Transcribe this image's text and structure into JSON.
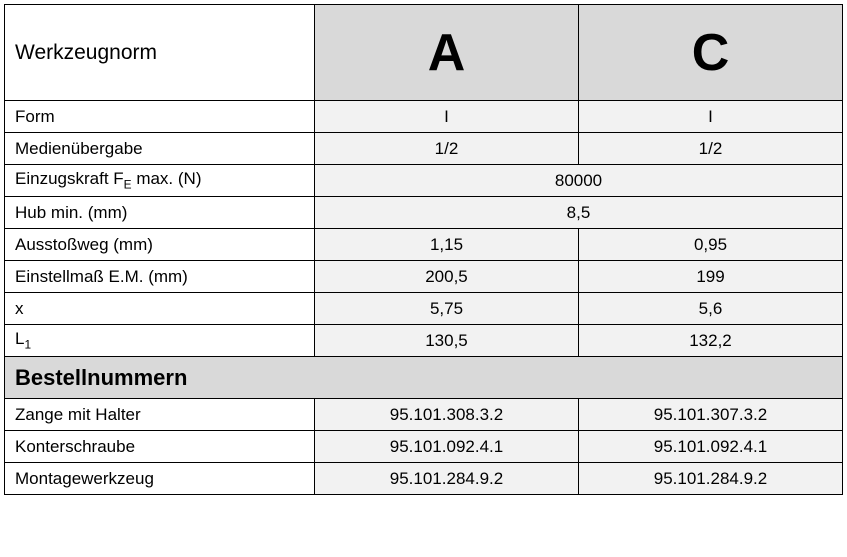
{
  "table": {
    "border_color": "#000000",
    "header_bg": "#d9d9d9",
    "value_bg": "#f2f2f2",
    "label_bg": "#ffffff",
    "font_family": "Arial",
    "header_label": "Werkzeugnorm",
    "header_label_fontsize": 21,
    "columns": [
      "A",
      "C"
    ],
    "column_header_fontsize": 52,
    "column_header_weight": 700,
    "rows": [
      {
        "label_html": "Form",
        "type": "split",
        "values": [
          "I",
          "I"
        ]
      },
      {
        "label_html": "Medienübergabe",
        "type": "split",
        "values": [
          "1/2",
          "1/2"
        ]
      },
      {
        "label_html": "Einzugskraft F<sub>E</sub> max. (N)",
        "type": "merged",
        "value": "80000"
      },
      {
        "label_html": "Hub min. (mm)",
        "type": "merged",
        "value": "8,5"
      },
      {
        "label_html": "Ausstoßweg (mm)",
        "type": "split",
        "values": [
          "1,15",
          "0,95"
        ]
      },
      {
        "label_html": "Einstellmaß E.M. (mm)",
        "type": "split",
        "values": [
          "200,5",
          "199"
        ]
      },
      {
        "label_html": "x",
        "type": "split",
        "values": [
          "5,75",
          "5,6"
        ]
      },
      {
        "label_html": "L<sub>1</sub>",
        "type": "split",
        "values": [
          "130,5",
          "132,2"
        ]
      }
    ],
    "section": {
      "title": "Bestellnummern",
      "title_fontsize": 22,
      "rows": [
        {
          "label": "Zange mit Halter",
          "values": [
            "95.101.308.3.2",
            "95.101.307.3.2"
          ]
        },
        {
          "label": "Konterschraube",
          "values": [
            "95.101.092.4.1",
            "95.101.092.4.1"
          ]
        },
        {
          "label": "Montagewerkzeug",
          "values": [
            "95.101.284.9.2",
            "95.101.284.9.2"
          ]
        }
      ]
    }
  }
}
